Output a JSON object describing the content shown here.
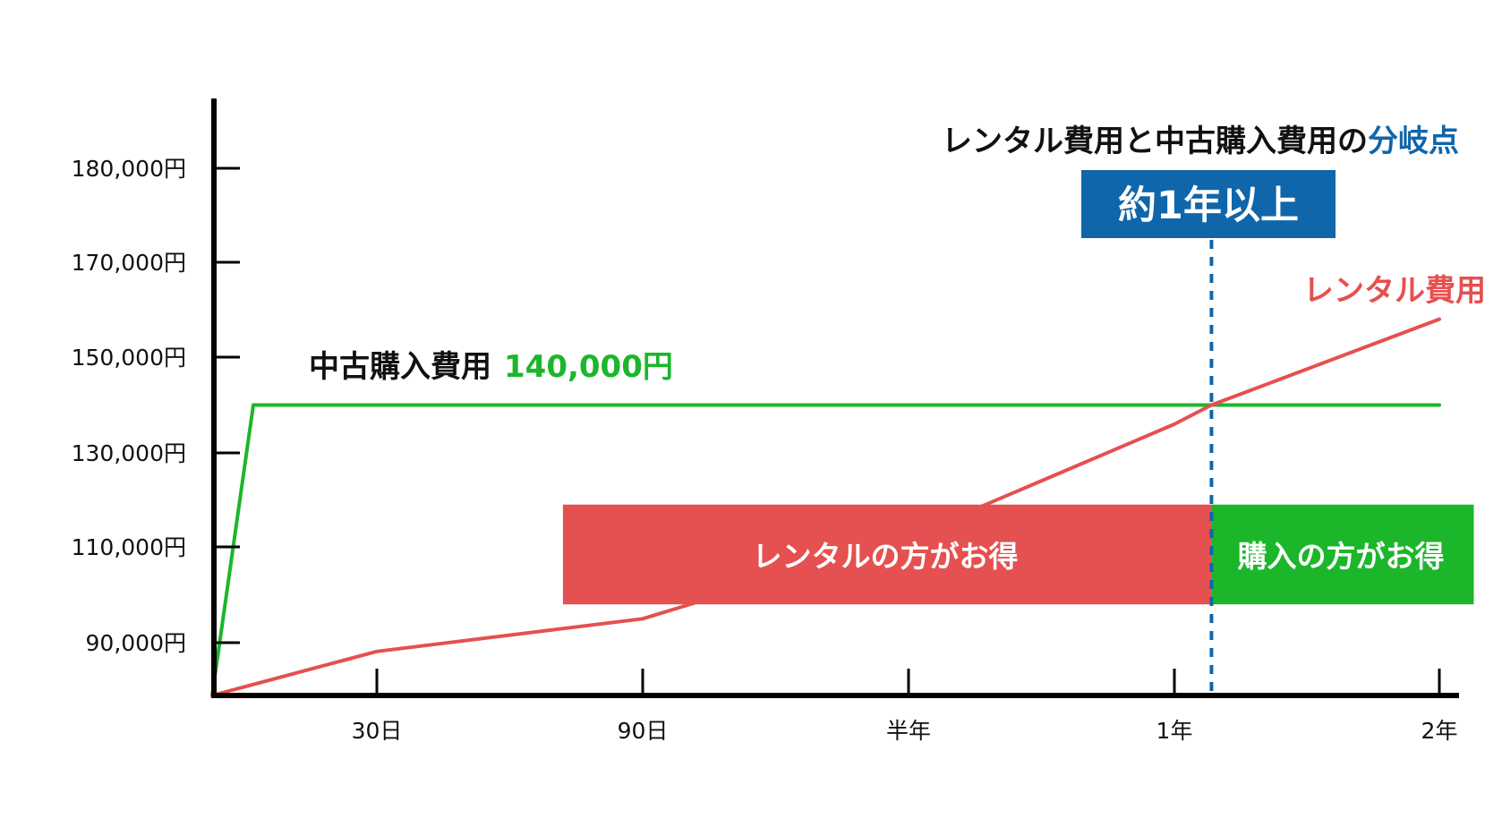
{
  "colors": {
    "axis": "#000000",
    "rental": "#e55050",
    "purchase": "#1cb62b",
    "accent": "#0f66aa",
    "white": "#ffffff"
  },
  "annotations": {
    "heading_main": "レンタル費用と中古購入費用の",
    "heading_accent": "分岐点",
    "badge": "約1年以上",
    "purchase_label": "中古購入費用",
    "purchase_value": "140,000円",
    "rental_label": "レンタル費用",
    "rental_better": "レンタルの方がお得",
    "purchase_better": "購入の方がお得"
  },
  "chart_data": {
    "type": "line",
    "title": "",
    "xlabel": "",
    "ylabel": "",
    "y_ticks": [
      {
        "label": "180,000円",
        "value": 180000
      },
      {
        "label": "170,000円",
        "value": 170000
      },
      {
        "label": "150,000円",
        "value": 150000
      },
      {
        "label": "130,000円",
        "value": 130000
      },
      {
        "label": "110,000円",
        "value": 110000
      },
      {
        "label": "90,000円",
        "value": 90000
      }
    ],
    "x_ticks": [
      {
        "label": "30日",
        "position": 1
      },
      {
        "label": "90日",
        "position": 2
      },
      {
        "label": "半年",
        "position": 3
      },
      {
        "label": "1年",
        "position": 4
      },
      {
        "label": "2年",
        "position": 5
      }
    ],
    "series": [
      {
        "name": "中古購入費用",
        "points": [
          [
            0,
            78000
          ],
          [
            0.25,
            140000
          ],
          [
            5,
            140000
          ]
        ]
      },
      {
        "name": "レンタル費用",
        "points": [
          [
            0,
            78000
          ],
          [
            1,
            88000
          ],
          [
            2,
            95000
          ],
          [
            3,
            112000
          ],
          [
            4,
            136000
          ],
          [
            4.14,
            140000
          ],
          [
            5,
            158000
          ]
        ]
      }
    ],
    "breakeven_x": 4.14,
    "regions": [
      {
        "label": "レンタルの方がお得",
        "x_start": 1.7,
        "x_end": 4.14,
        "y_top": 119000,
        "y_bottom": 98000
      },
      {
        "label": "購入の方がお得",
        "x_start": 4.14,
        "x_end": 5.13,
        "y_top": 119000,
        "y_bottom": 98000
      }
    ],
    "grid": false,
    "legend": "none"
  }
}
